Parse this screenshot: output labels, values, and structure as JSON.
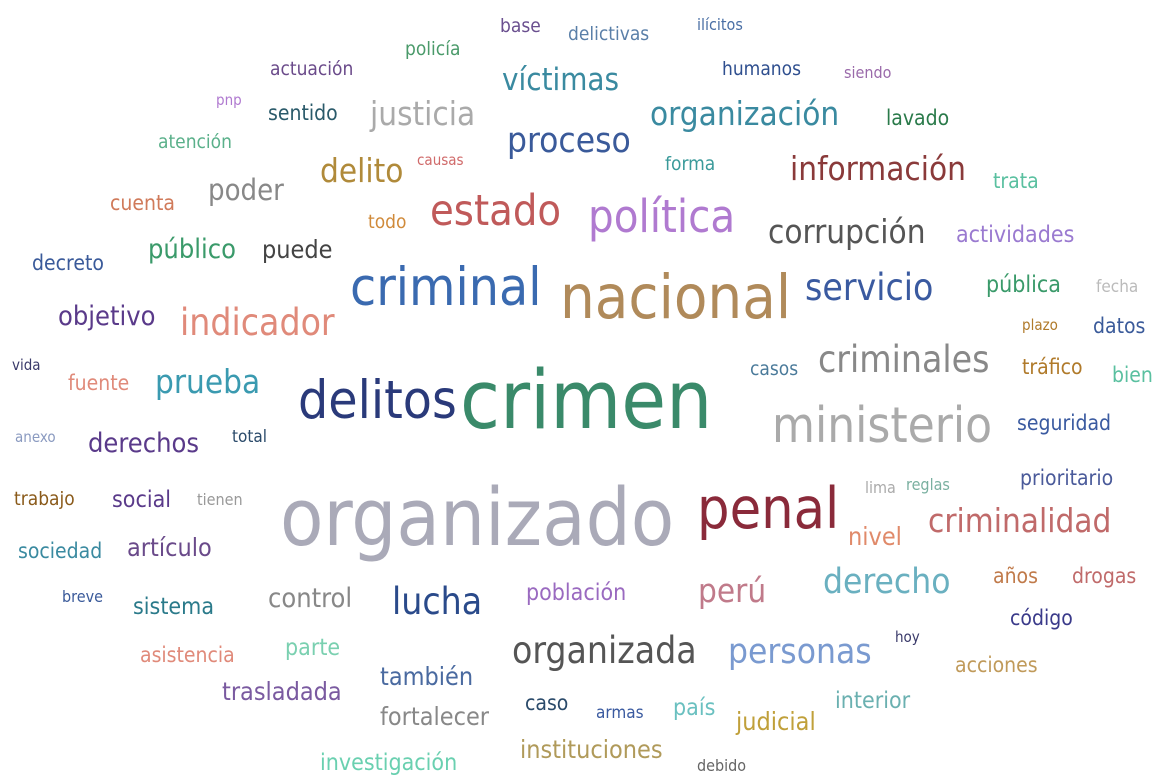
{
  "words": [
    "base",
    "delictivas",
    "ilícitos",
    "policía",
    "actuación",
    "humanos",
    "siendo",
    "víctimas",
    "pnp",
    "sentido",
    "justicia",
    "organización",
    "lavado",
    "atención",
    "proceso",
    "causas",
    "forma",
    "delito",
    "información",
    "trata",
    "poder",
    "cuenta",
    "estado",
    "todo",
    "política",
    "corrupción",
    "actividades",
    "público",
    "puede",
    "decreto",
    "criminal",
    "nacional",
    "servicio",
    "pública",
    "fecha",
    "objetivo",
    "indicador",
    "plazo",
    "datos",
    "vida",
    "fuente",
    "prueba",
    "casos",
    "criminales",
    "tráfico",
    "bien",
    "delitos",
    "crimen",
    "ministerio",
    "seguridad",
    "anexo",
    "derechos",
    "total",
    "lima",
    "reglas",
    "prioritario",
    "trabajo",
    "social",
    "tienen",
    "organizado",
    "penal",
    "criminalidad",
    "nivel",
    "sociedad",
    "artículo",
    "años",
    "drogas",
    "derecho",
    "breve",
    "sistema",
    "control",
    "lucha",
    "población",
    "perú",
    "código",
    "hoy",
    "asistencia",
    "parte",
    "organizada",
    "personas",
    "acciones",
    "también",
    "trasladada",
    "caso",
    "armas",
    "país",
    "interior",
    "fortalecer",
    "judicial",
    "instituciones",
    "investigación",
    "debido"
  ]
}
